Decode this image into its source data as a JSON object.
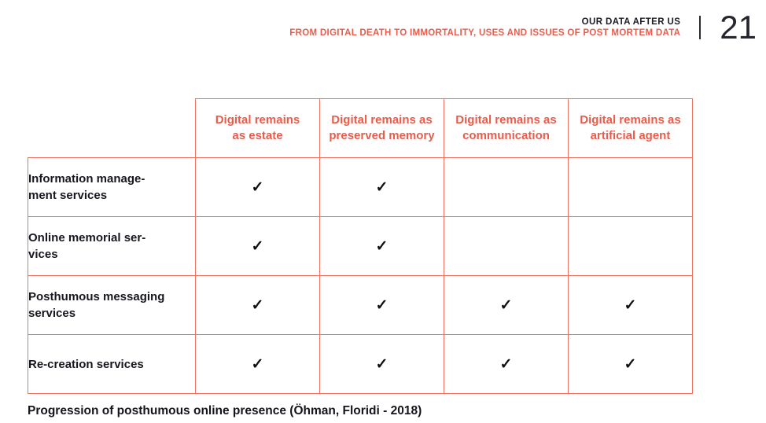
{
  "page_header": {
    "title": "OUR DATA AFTER US",
    "subtitle": "FROM DIGITAL DEATH TO IMMORTALITY, USES AND ISSUES OF POST MORTEM DATA",
    "page_number": "21"
  },
  "chart_data": {
    "type": "table",
    "column_headers": [
      "Digital remains\nas estate",
      "Digital remains as\npreserved memory",
      "Digital remains as\ncommunication",
      "Digital remains as\nartificial agent"
    ],
    "rows": [
      {
        "label": "Information manage-\nment services",
        "cells": [
          "✓",
          "✓",
          "",
          ""
        ]
      },
      {
        "label": "Online memorial ser-\nvices",
        "cells": [
          "✓",
          "✓",
          "",
          ""
        ]
      },
      {
        "label": "Posthumous messaging\nservices",
        "cells": [
          "✓",
          "✓",
          "✓",
          "✓"
        ]
      },
      {
        "label": "Re-creation services",
        "cells": [
          "✓",
          "✓",
          "✓",
          "✓"
        ]
      }
    ],
    "check_symbol": "✓"
  },
  "caption": "Progression of posthumous online presence (Öhman, Floridi - 2018)",
  "colors": {
    "accent_red": "#ea5b4a",
    "table_border": "#ed7463",
    "text_dark": "#17171f"
  }
}
